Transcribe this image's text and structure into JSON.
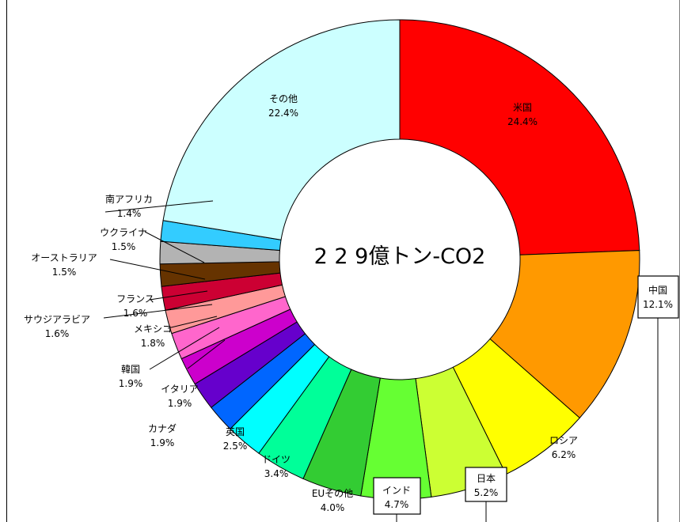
{
  "chart_data": {
    "type": "pie",
    "style": "donut",
    "center_text": "2 2 9億トン-CO2",
    "categories": [
      "米国",
      "中国",
      "ロシア",
      "日本",
      "インド",
      "EUその他",
      "ドイツ",
      "英国",
      "カナダ",
      "イタリア",
      "韓国",
      "メキシコ",
      "サウジアラビア",
      "フランス",
      "オーストラリア",
      "ウクライナ",
      "南アフリカ",
      "その他"
    ],
    "values": [
      24.4,
      12.1,
      6.2,
      5.2,
      4.7,
      4.0,
      3.4,
      2.5,
      1.9,
      1.9,
      1.9,
      1.8,
      1.6,
      1.6,
      1.5,
      1.5,
      1.4,
      22.4
    ],
    "value_labels": [
      "24.4%",
      "12.1%",
      "6.2%",
      "5.2%",
      "4.7%",
      "4.0%",
      "3.4%",
      "2.5%",
      "1.9%",
      "1.9%",
      "1.9%",
      "1.8%",
      "1.6%",
      "1.6%",
      "1.5%",
      "1.5%",
      "1.4%",
      "22.4%"
    ],
    "colors": [
      "#ff0000",
      "#ff9900",
      "#ffff00",
      "#ccff33",
      "#66ff33",
      "#33cc33",
      "#00ff99",
      "#00ffff",
      "#0066ff",
      "#6600cc",
      "#cc00cc",
      "#ff66cc",
      "#ff9999",
      "#cc0033",
      "#663300",
      "#b3b3b3",
      "#33ccff",
      "#ccffff"
    ],
    "legend": "none"
  }
}
